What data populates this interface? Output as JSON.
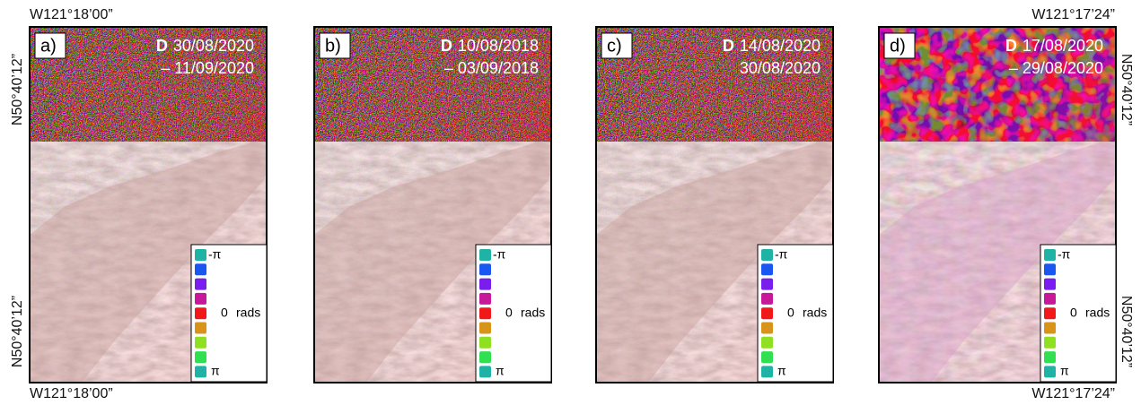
{
  "coordinates": {
    "top_left": "W121°18’00”",
    "left_top": "N50°40’12”",
    "left_bottom": "N50°40’12”",
    "bottom_left": "W121°18’00”",
    "top_right": "W121°17’24”",
    "right_top": "N50°40’12”",
    "right_bottom": "N50°40’12”",
    "bottom_right": "W121°17’24”"
  },
  "panels": [
    {
      "label": "a)",
      "prefix": "D",
      "dates": [
        "30/08/2020",
        "– 11/09/2020"
      ]
    },
    {
      "label": "b)",
      "prefix": "D",
      "dates": [
        "10/08/2018",
        "– 03/09/2018"
      ]
    },
    {
      "label": "c)",
      "prefix": "D",
      "dates": [
        "14/08/2020",
        "30/08/2020"
      ]
    },
    {
      "label": "d)",
      "prefix": "D",
      "dates": [
        "17/08/2020",
        "– 29/08/2020"
      ]
    }
  ],
  "legend": {
    "min": "-π",
    "zero": "0",
    "unit": "rads",
    "max": "π",
    "colors": [
      "#1fb3a6",
      "#1a56f0",
      "#7a1ef0",
      "#c8189a",
      "#f01818",
      "#d89418",
      "#8ee020",
      "#30e050",
      "#1fb3a6"
    ]
  }
}
